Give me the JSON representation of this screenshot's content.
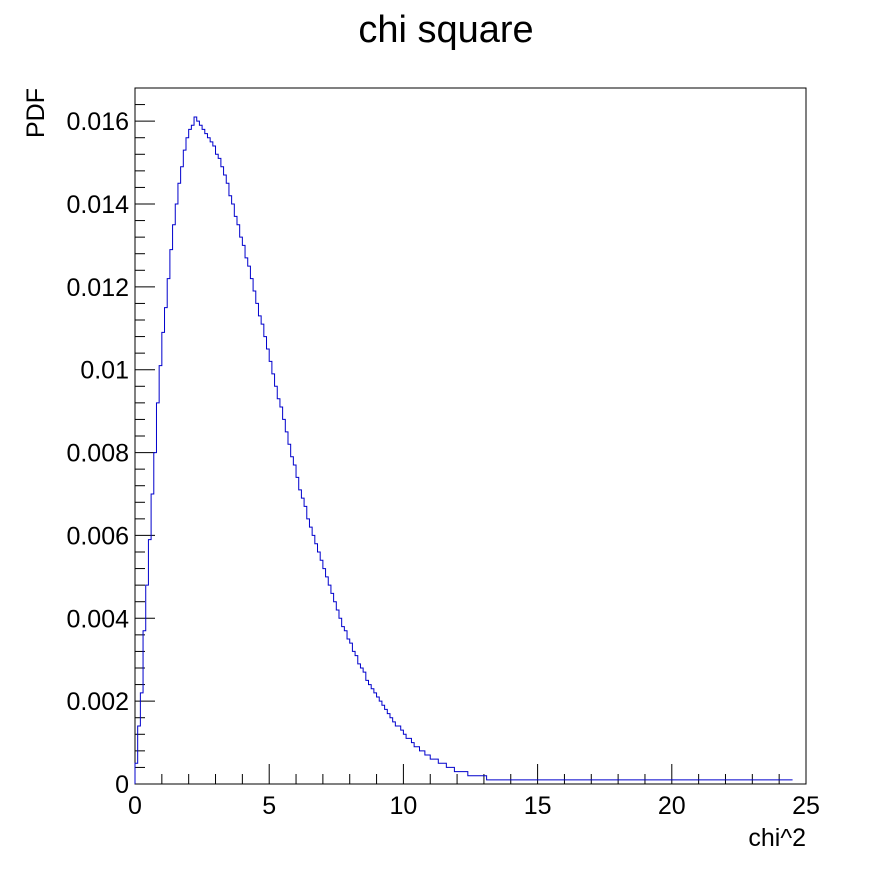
{
  "chart_data": {
    "type": "histogram",
    "title": "chi square",
    "xlabel": "chi^2",
    "ylabel": "PDF",
    "xlim": [
      0,
      25
    ],
    "ylim": [
      0,
      0.0168
    ],
    "grid": false,
    "legend": "none",
    "line_color": "#0000cc",
    "x_ticks": [
      0,
      5,
      10,
      15,
      20,
      25
    ],
    "x_tick_labels": [
      "0",
      "5",
      "10",
      "15",
      "20",
      "25"
    ],
    "y_ticks": [
      0,
      0.002,
      0.004,
      0.006,
      0.008,
      0.01,
      0.012,
      0.014,
      0.016
    ],
    "y_tick_labels": [
      "0",
      "0.002",
      "0.004",
      "0.006",
      "0.008",
      "0.01",
      "0.012",
      "0.014",
      "0.016"
    ],
    "bin_width": 0.1,
    "bin_start": 0,
    "values": [
      0.0005,
      0.0014,
      0.0022,
      0.0037,
      0.0048,
      0.0059,
      0.007,
      0.008,
      0.0092,
      0.0101,
      0.0109,
      0.0115,
      0.0122,
      0.0129,
      0.0135,
      0.014,
      0.0145,
      0.0149,
      0.0153,
      0.0156,
      0.0158,
      0.0159,
      0.0161,
      0.016,
      0.0159,
      0.0158,
      0.0157,
      0.0156,
      0.0155,
      0.0154,
      0.0152,
      0.0151,
      0.0149,
      0.0147,
      0.0145,
      0.0142,
      0.014,
      0.0137,
      0.0135,
      0.0132,
      0.013,
      0.0127,
      0.0125,
      0.0122,
      0.0119,
      0.0116,
      0.0113,
      0.0111,
      0.0108,
      0.0105,
      0.0102,
      0.0099,
      0.0096,
      0.0093,
      0.0091,
      0.0088,
      0.0085,
      0.0082,
      0.0079,
      0.0077,
      0.0074,
      0.0071,
      0.0069,
      0.0067,
      0.0064,
      0.0062,
      0.006,
      0.0058,
      0.0056,
      0.0054,
      0.0052,
      0.005,
      0.0048,
      0.0046,
      0.0044,
      0.0042,
      0.004,
      0.0038,
      0.0037,
      0.0035,
      0.0034,
      0.0032,
      0.0031,
      0.0029,
      0.0028,
      0.0027,
      0.0025,
      0.0024,
      0.0023,
      0.0022,
      0.0021,
      0.002,
      0.0019,
      0.0018,
      0.0017,
      0.0016,
      0.0015,
      0.0014,
      0.0014,
      0.0013,
      0.0012,
      0.0011,
      0.0011,
      0.001,
      0.0009,
      0.0009,
      0.0008,
      0.0008,
      0.0007,
      0.0007,
      0.0006,
      0.0006,
      0.0006,
      0.0005,
      0.0005,
      0.0005,
      0.0004,
      0.0004,
      0.0004,
      0.0003,
      0.0003,
      0.0003,
      0.0003,
      0.0003,
      0.0002,
      0.0002,
      0.0002,
      0.0002,
      0.0002,
      0.0002,
      0.0002,
      0.0001,
      0.0001,
      0.0001,
      0.0001,
      0.0001,
      0.0001,
      0.0001,
      0.0001,
      0.0001,
      0.0001,
      0.0001,
      0.0001,
      0.0001,
      0.0001,
      0.0001,
      0.0001,
      0.0001,
      0.0001,
      0.0001,
      0.0001,
      0.0001,
      0.0001,
      0.0001,
      0.0001,
      0.0001,
      0.0001,
      0.0001,
      0.0001,
      0.0001,
      0.0001,
      0.0001,
      0.0001,
      0.0001,
      0.0001,
      0.0001,
      0.0001,
      0.0001,
      0.0001,
      0.0001,
      0.0001,
      0.0001,
      0.0001,
      0.0001,
      0.0001,
      0.0001,
      0.0001,
      0.0001,
      0.0001,
      0.0001,
      0.0001,
      0.0001,
      0.0001,
      0.0001,
      0.0001,
      0.0001,
      0.0001,
      0.0001,
      0.0001,
      0.0001,
      0.0001,
      0.0001,
      0.0001,
      0.0001,
      0.0001,
      0.0001,
      0.0001,
      0.0001,
      0.0001,
      0.0001,
      0.0001,
      0.0001,
      0.0001,
      0.0001,
      0.0001,
      0.0001,
      0.0001,
      0.0001,
      0.0001,
      0.0001,
      0.0001,
      0.0001,
      0.0001,
      0.0001,
      0.0001,
      0.0001,
      0.0001,
      0.0001,
      0.0001,
      0.0001,
      0.0001,
      0.0001,
      0.0001,
      0.0001,
      0.0001,
      0.0001,
      0.0001,
      0.0001,
      0.0001,
      0.0001,
      0.0001,
      0.0001,
      0.0001,
      0.0001,
      0.0001,
      0.0001,
      0.0001,
      0.0001,
      0.0001,
      0.0001,
      0.0001,
      0.0001,
      0.0001,
      0.0001,
      0.0001
    ]
  }
}
